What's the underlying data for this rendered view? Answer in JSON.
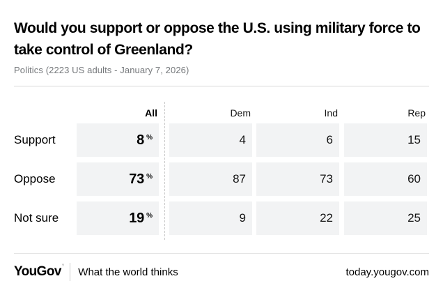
{
  "header": {
    "title": "Would you support or oppose the U.S. using military force to take control of Greenland?",
    "subtitle": "Politics (2223 US adults - January 7, 2026)"
  },
  "table": {
    "columns": [
      "All",
      "Dem",
      "Ind",
      "Rep"
    ],
    "percent_sign": "%",
    "rows": [
      {
        "label": "Support",
        "all": "8",
        "dem": "4",
        "ind": "6",
        "rep": "15"
      },
      {
        "label": "Oppose",
        "all": "73",
        "dem": "87",
        "ind": "73",
        "rep": "60"
      },
      {
        "label": "Not sure",
        "all": "19",
        "dem": "9",
        "ind": "22",
        "rep": "25"
      }
    ]
  },
  "footer": {
    "logo_text": "YouGov",
    "logo_accent": "’",
    "tagline": "What the world thinks",
    "url": "today.yougov.com"
  },
  "colors": {
    "cell_background": "#f2f3f4",
    "subtitle_text": "#75787b",
    "top_divider": "#d9d9d9",
    "footer_divider": "#e4e4e4",
    "dashed_separator": "#c8c8c8",
    "text": "#000000"
  },
  "chart_data": {
    "type": "table",
    "title": "Would you support or oppose the U.S. using military force to take control of Greenland?",
    "subtitle": "Politics (2223 US adults - January 7, 2026)",
    "columns": [
      "All",
      "Dem",
      "Ind",
      "Rep"
    ],
    "row_labels": [
      "Support",
      "Oppose",
      "Not sure"
    ],
    "series": [
      {
        "name": "Support",
        "values": [
          8,
          4,
          6,
          15
        ]
      },
      {
        "name": "Oppose",
        "values": [
          73,
          87,
          73,
          60
        ]
      },
      {
        "name": "Not sure",
        "values": [
          19,
          9,
          22,
          25
        ]
      }
    ],
    "unit": "percent",
    "notes": "All column values displayed with % suffix; party breakdown columns shown as plain numbers"
  }
}
